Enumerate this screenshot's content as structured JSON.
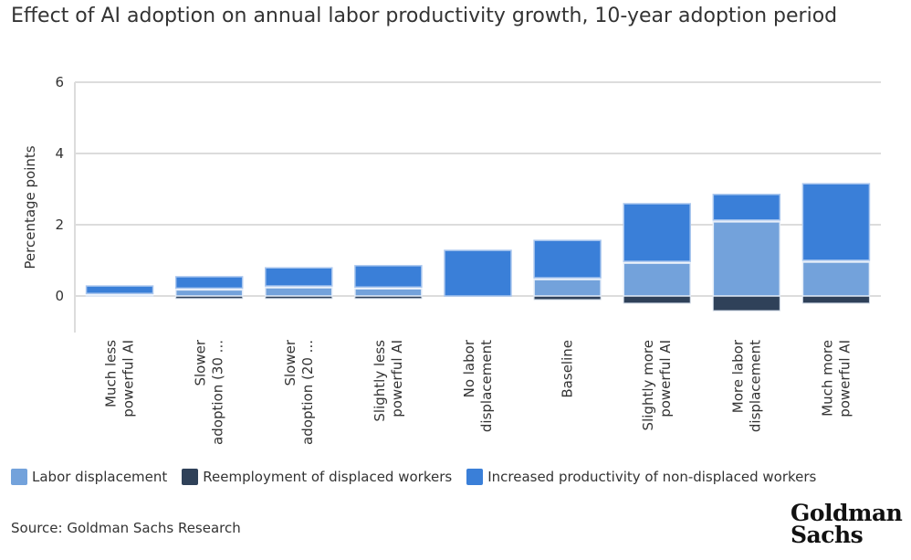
{
  "chart_data": {
    "type": "bar",
    "stacked": true,
    "title": "Effect of AI adoption on annual labor productivity growth, 10-year adoption period",
    "ylabel": "Percentage points",
    "xlabel": "",
    "ylim": [
      -1,
      6
    ],
    "yticks": [
      0,
      2,
      4,
      6
    ],
    "grid": true,
    "legend_position": "bottom-left",
    "categories": [
      [
        "Much less",
        "powerful AI"
      ],
      [
        "Slower",
        "adoption (30 ..."
      ],
      [
        "Slower",
        "adoption (20 ..."
      ],
      [
        "Slightly less",
        "powerful AI"
      ],
      [
        "No labor",
        "displacement"
      ],
      [
        "Baseline"
      ],
      [
        "Slightly more",
        "powerful AI"
      ],
      [
        "More labor",
        "displacement"
      ],
      [
        "Much more",
        "powerful AI"
      ]
    ],
    "series": [
      {
        "name": "Labor displacement",
        "color": "#73a2db",
        "values": [
          0.02,
          0.17,
          0.23,
          0.2,
          0.0,
          0.46,
          0.92,
          2.08,
          0.95
        ]
      },
      {
        "name": "Reemployment of displaced workers",
        "color": "#2f4159",
        "values": [
          -0.01,
          -0.07,
          -0.07,
          -0.07,
          0.0,
          -0.1,
          -0.2,
          -0.41,
          -0.2
        ]
      },
      {
        "name": "Increased productivity of non-displaced workers",
        "color": "#3a7fd8",
        "values": [
          0.26,
          0.37,
          0.56,
          0.65,
          1.28,
          1.1,
          1.67,
          0.77,
          2.2
        ]
      }
    ]
  },
  "legend": [
    "Labor displacement",
    "Reemployment of displaced workers",
    "Increased productivity of non-displaced workers"
  ],
  "source": "Source: Goldman Sachs Research",
  "logo_text": [
    "Goldman",
    "Sachs"
  ],
  "colors": {
    "light": "#73a2db",
    "dark": "#2f4159",
    "blue": "#3a7fd8"
  }
}
